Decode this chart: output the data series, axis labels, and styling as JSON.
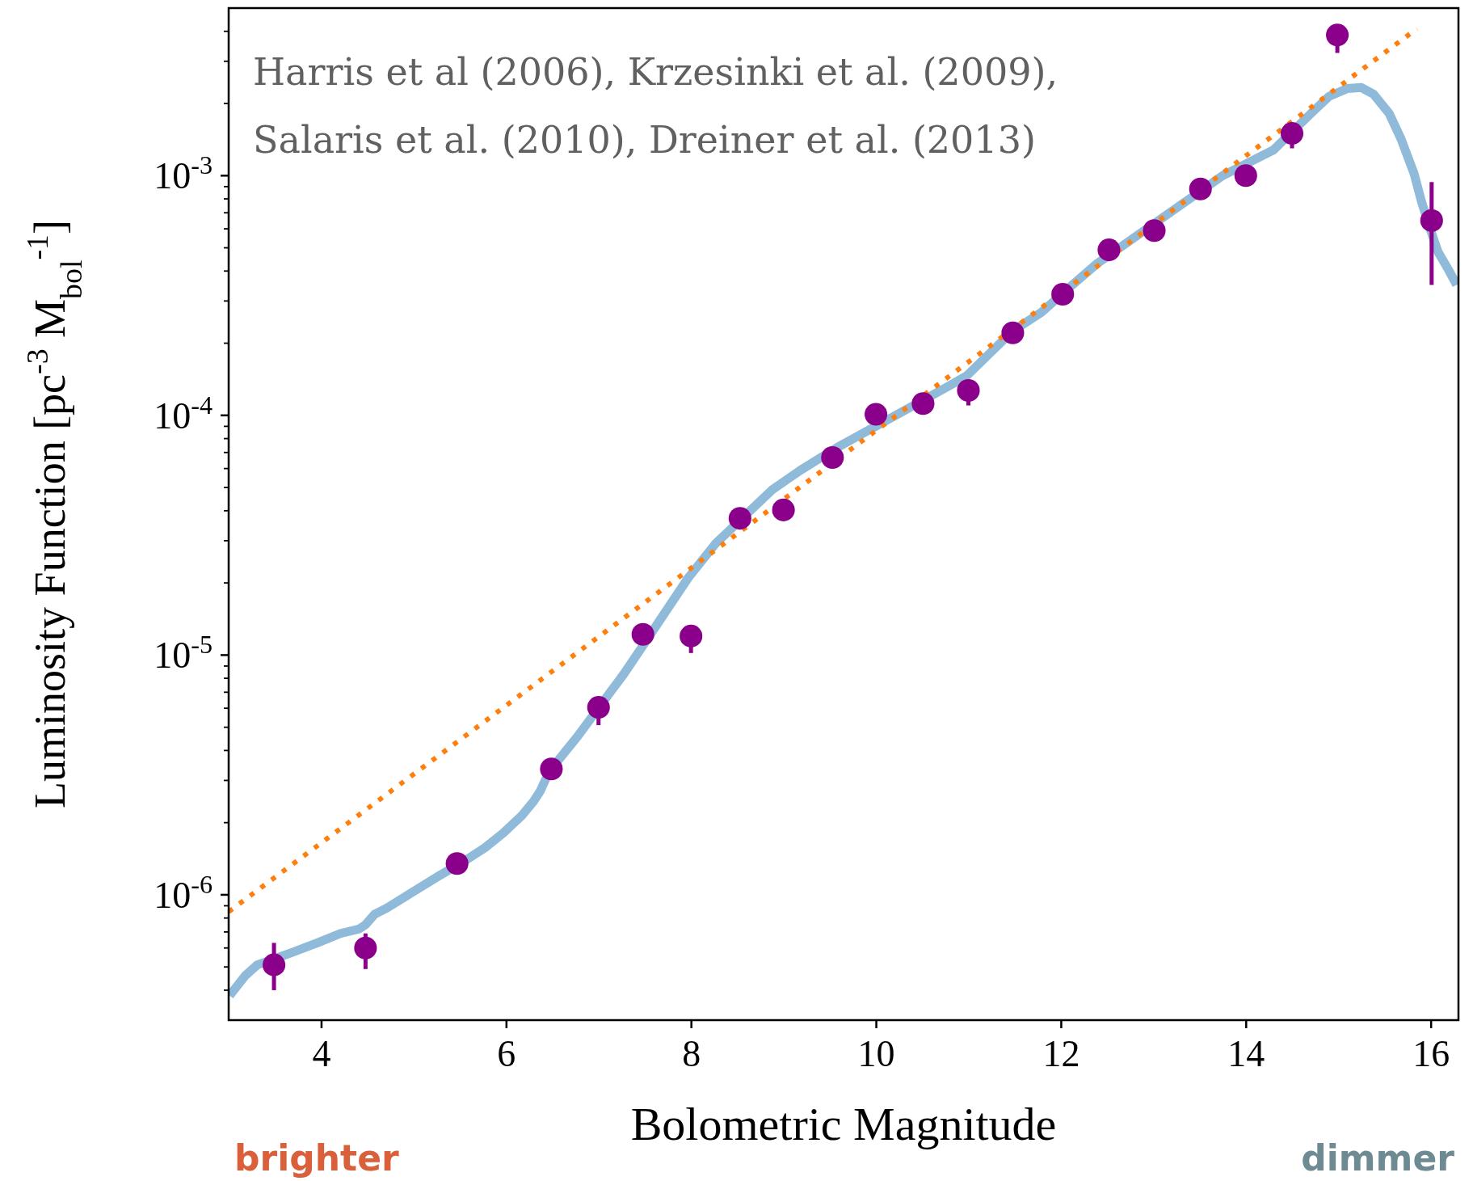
{
  "chart_data": {
    "type": "scatter",
    "xlabel": "Bolometric Magnitude",
    "ylabel": "Luminosity Function [pc$^{-3}$ M$_{bol}$$^{-1}$]",
    "annotations": [
      "Harris et al (2006), Krzesinki et al. (2009),",
      "Salaris et al. (2010), Dreiner et al. (2013)",
      "brighter",
      "dimmer"
    ],
    "log": "y",
    "grid": false,
    "xlim": [
      3,
      16.3
    ],
    "xticks": [
      4,
      6,
      8,
      10,
      12,
      14,
      16
    ],
    "ylim": [
      3e-07,
      0.005
    ],
    "yticks": [
      {
        "value": 4e-07,
        "label": null
      },
      {
        "value": 5e-07,
        "label": null
      },
      {
        "value": 6e-07,
        "label": null
      },
      {
        "value": 7e-07,
        "label": null
      },
      {
        "value": 8e-07,
        "label": null
      },
      {
        "value": 9e-07,
        "label": null
      },
      {
        "value": 1e-06,
        "label": "10$^{-6}$"
      },
      {
        "value": 2e-06,
        "label": null
      },
      {
        "value": 3e-06,
        "label": null
      },
      {
        "value": 4e-06,
        "label": null
      },
      {
        "value": 5e-06,
        "label": null
      },
      {
        "value": 6e-06,
        "label": null
      },
      {
        "value": 7e-06,
        "label": null
      },
      {
        "value": 8e-06,
        "label": null
      },
      {
        "value": 9e-06,
        "label": null
      },
      {
        "value": 1e-05,
        "label": "10$^{-5}$"
      },
      {
        "value": 2e-05,
        "label": null
      },
      {
        "value": 3e-05,
        "label": null
      },
      {
        "value": 4e-05,
        "label": null
      },
      {
        "value": 5e-05,
        "label": null
      },
      {
        "value": 6e-05,
        "label": null
      },
      {
        "value": 7e-05,
        "label": null
      },
      {
        "value": 8e-05,
        "label": null
      },
      {
        "value": 9e-05,
        "label": null
      },
      {
        "value": 0.0001,
        "label": "10$^{-4}$"
      },
      {
        "value": 0.0002,
        "label": null
      },
      {
        "value": 0.0003,
        "label": null
      },
      {
        "value": 0.0004,
        "label": null
      },
      {
        "value": 0.0005,
        "label": null
      },
      {
        "value": 0.0006,
        "label": null
      },
      {
        "value": 0.0007,
        "label": null
      },
      {
        "value": 0.0008,
        "label": null
      },
      {
        "value": 0.0009,
        "label": null
      },
      {
        "value": 0.001,
        "label": "10$^{-3}$"
      },
      {
        "value": 0.002,
        "label": null
      },
      {
        "value": 0.003,
        "label": null
      },
      {
        "value": 0.004,
        "label": null
      }
    ],
    "series": [
      {
        "type": "line",
        "color": "#8fbad9",
        "line_style": "solid",
        "marker": "none",
        "x": [
          3.01,
          3.18,
          3.31,
          3.66,
          3.96,
          4.21,
          4.41,
          4.48,
          4.58,
          4.71,
          4.96,
          5.26,
          5.57,
          5.77,
          5.97,
          6.17,
          6.3,
          6.37,
          6.47,
          6.57,
          6.77,
          7.15,
          7.27,
          7.47,
          7.67,
          7.97,
          8.27,
          8.88,
          9.18,
          9.58,
          10.75,
          10.98,
          11.48,
          11.79,
          12.09,
          12.39,
          13.75,
          14.3,
          14.7,
          14.9,
          15.1,
          15.25,
          15.38,
          15.55,
          15.68,
          15.82,
          15.9,
          16.0,
          16.08,
          16.2,
          16.28
        ],
        "values": [
          3.8e-07,
          4.6e-07,
          5.1e-07,
          5.7e-07,
          6.3e-07,
          6.9e-07,
          7.2e-07,
          7.5e-07,
          8.3e-07,
          8.8e-07,
          1.01e-06,
          1.19e-06,
          1.4e-06,
          1.57e-06,
          1.81e-06,
          2.14e-06,
          2.46e-06,
          2.71e-06,
          3.29e-06,
          3.66e-06,
          4.56e-06,
          7.2e-06,
          8.3e-06,
          1.08e-05,
          1.41e-05,
          2.1e-05,
          2.93e-05,
          4.9e-05,
          5.89e-05,
          7.34e-05,
          0.00013,
          0.000146,
          0.000225,
          0.000269,
          0.000341,
          0.000429,
          0.001,
          0.00128,
          0.00181,
          0.00214,
          0.00231,
          0.00233,
          0.00219,
          0.00182,
          0.00142,
          0.00102,
          0.00078,
          0.00059,
          0.00048,
          0.0004,
          0.00035
        ]
      },
      {
        "type": "line",
        "color": "#ff7f0e",
        "line_style": "dotted",
        "marker": "none",
        "x": [
          3.0,
          15.85
        ],
        "values": [
          8.5e-07,
          0.0041
        ]
      },
      {
        "type": "scatter",
        "color": "#8b008b",
        "marker": "circle",
        "x": [
          3.49,
          4.48,
          5.47,
          6.49,
          7.0,
          7.48,
          8.0,
          8.53,
          9.0,
          9.53,
          10.0,
          10.51,
          11.0,
          11.48,
          12.02,
          12.52,
          13.01,
          13.51,
          14.0,
          14.5,
          14.99,
          16.01
        ],
        "values": [
          5.1e-07,
          6e-07,
          1.35e-06,
          3.35e-06,
          6.05e-06,
          1.22e-05,
          1.2e-05,
          3.72e-05,
          4.03e-05,
          6.67e-05,
          0.000101,
          0.000112,
          0.000127,
          0.000221,
          0.00032,
          0.00049,
          0.00059,
          0.00088,
          0.001,
          0.0015,
          0.00386,
          0.00065
        ],
        "errors": [
          [
            4e-07,
            6.3e-07
          ],
          [
            4.9e-07,
            6.9e-07
          ],
          null,
          null,
          [
            5.1e-06,
            6.05e-06
          ],
          null,
          [
            1.02e-05,
            1.2e-05
          ],
          null,
          null,
          null,
          null,
          null,
          [
            0.00011,
            0.000127
          ],
          null,
          null,
          null,
          null,
          null,
          null,
          [
            0.0013,
            0.0015
          ],
          [
            0.00325,
            0.00386
          ],
          [
            0.00035,
            0.00094
          ]
        ]
      }
    ]
  }
}
